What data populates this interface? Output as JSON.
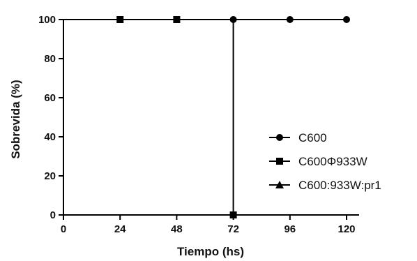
{
  "chart_data": {
    "type": "line",
    "title": "",
    "xlabel": "Tiempo (hs)",
    "ylabel": "Sobrevida (%)",
    "xlim": [
      0,
      120
    ],
    "ylim": [
      0,
      100
    ],
    "xticks": [
      0,
      24,
      48,
      72,
      96,
      120
    ],
    "yticks": [
      0,
      20,
      40,
      60,
      80,
      100
    ],
    "grid": false,
    "legend_position": "right",
    "series": [
      {
        "name": "C600",
        "marker": "circle",
        "color": "#000000",
        "x": [
          0,
          24,
          48,
          72,
          96,
          120
        ],
        "y": [
          100,
          100,
          100,
          100,
          100,
          100
        ]
      },
      {
        "name": "C600Φ933W",
        "marker": "square",
        "color": "#000000",
        "x": [
          0,
          24,
          48,
          72,
          72
        ],
        "y": [
          100,
          100,
          100,
          100,
          0
        ]
      },
      {
        "name": "C600:933W:pr1",
        "marker": "triangle",
        "color": "#000000",
        "x": [
          0,
          24,
          48,
          72,
          96,
          120
        ],
        "y": [
          100,
          100,
          100,
          100,
          100,
          100
        ]
      }
    ]
  }
}
